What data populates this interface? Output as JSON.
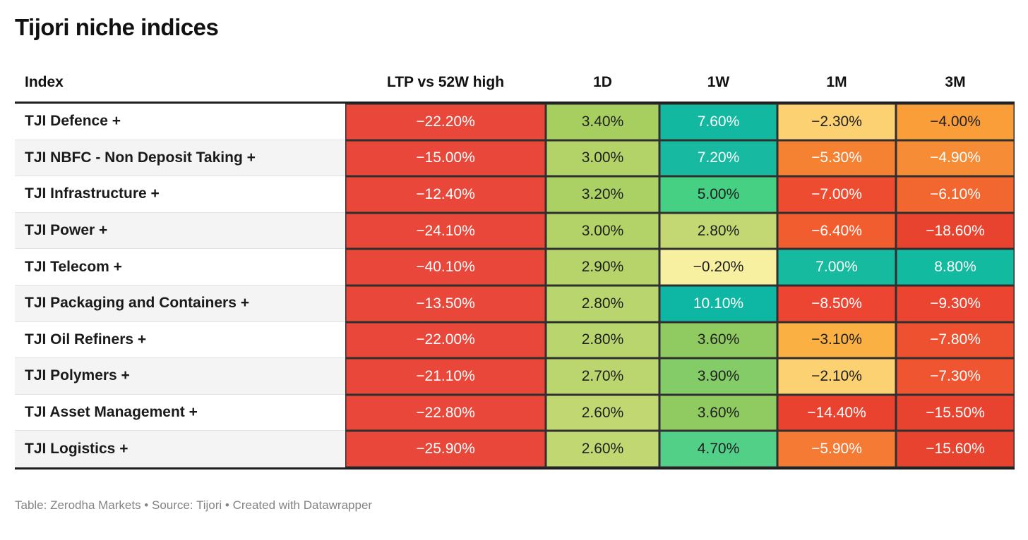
{
  "title": "Tijori niche indices",
  "footer": "Table: Zerodha Markets • Source: Tijori • Created with Datawrapper",
  "table": {
    "columns": [
      "Index",
      "LTP vs 52W high",
      "1D",
      "1W",
      "1M",
      "3M"
    ],
    "rows": [
      {
        "index": "TJI Defence +",
        "cells": [
          {
            "v": "−22.20%",
            "bg": "#e8473a",
            "fg": "#ffffff"
          },
          {
            "v": "3.40%",
            "bg": "#a7cf60",
            "fg": "#1f1f1f"
          },
          {
            "v": "7.60%",
            "bg": "#13b8a1",
            "fg": "#ffffff"
          },
          {
            "v": "−2.30%",
            "bg": "#fbd172",
            "fg": "#1f1f1f"
          },
          {
            "v": "−4.00%",
            "bg": "#f99e38",
            "fg": "#1f1f1f"
          }
        ]
      },
      {
        "index": "TJI NBFC - Non Deposit Taking +",
        "cells": [
          {
            "v": "−15.00%",
            "bg": "#e8473a",
            "fg": "#ffffff"
          },
          {
            "v": "3.00%",
            "bg": "#b3d368",
            "fg": "#1f1f1f"
          },
          {
            "v": "7.20%",
            "bg": "#18b9a1",
            "fg": "#ffffff"
          },
          {
            "v": "−5.30%",
            "bg": "#f58133",
            "fg": "#ffffff"
          },
          {
            "v": "−4.90%",
            "bg": "#f68c35",
            "fg": "#ffffff"
          }
        ]
      },
      {
        "index": "TJI Infrastructure +",
        "cells": [
          {
            "v": "−12.40%",
            "bg": "#e8473a",
            "fg": "#ffffff"
          },
          {
            "v": "3.20%",
            "bg": "#abd164",
            "fg": "#1f1f1f"
          },
          {
            "v": "5.00%",
            "bg": "#46d083",
            "fg": "#1f1f1f"
          },
          {
            "v": "−7.00%",
            "bg": "#ee4c31",
            "fg": "#ffffff"
          },
          {
            "v": "−6.10%",
            "bg": "#f2672f",
            "fg": "#ffffff"
          }
        ]
      },
      {
        "index": "TJI Power +",
        "cells": [
          {
            "v": "−24.10%",
            "bg": "#e8473a",
            "fg": "#ffffff"
          },
          {
            "v": "3.00%",
            "bg": "#b3d368",
            "fg": "#1f1f1f"
          },
          {
            "v": "2.80%",
            "bg": "#c3d873",
            "fg": "#1f1f1f"
          },
          {
            "v": "−6.40%",
            "bg": "#f15d2f",
            "fg": "#ffffff"
          },
          {
            "v": "−18.60%",
            "bg": "#e8432f",
            "fg": "#ffffff"
          }
        ]
      },
      {
        "index": "TJI Telecom +",
        "cells": [
          {
            "v": "−40.10%",
            "bg": "#e8473a",
            "fg": "#ffffff"
          },
          {
            "v": "2.90%",
            "bg": "#b6d46a",
            "fg": "#1f1f1f"
          },
          {
            "v": "−0.20%",
            "bg": "#f6f0a0",
            "fg": "#1f1f1f"
          },
          {
            "v": "7.00%",
            "bg": "#16bb9f",
            "fg": "#ffffff"
          },
          {
            "v": "8.80%",
            "bg": "#12bba0",
            "fg": "#ffffff"
          }
        ]
      },
      {
        "index": "TJI Packaging and Containers +",
        "cells": [
          {
            "v": "−13.50%",
            "bg": "#e8473a",
            "fg": "#ffffff"
          },
          {
            "v": "2.80%",
            "bg": "#b9d56d",
            "fg": "#1f1f1f"
          },
          {
            "v": "10.10%",
            "bg": "#0db7a4",
            "fg": "#ffffff"
          },
          {
            "v": "−8.50%",
            "bg": "#ec4532",
            "fg": "#ffffff"
          },
          {
            "v": "−9.30%",
            "bg": "#eb4431",
            "fg": "#ffffff"
          }
        ]
      },
      {
        "index": "TJI Oil Refiners +",
        "cells": [
          {
            "v": "−22.00%",
            "bg": "#e8473a",
            "fg": "#ffffff"
          },
          {
            "v": "2.80%",
            "bg": "#b9d56d",
            "fg": "#1f1f1f"
          },
          {
            "v": "3.60%",
            "bg": "#8fcb61",
            "fg": "#1f1f1f"
          },
          {
            "v": "−3.10%",
            "bg": "#fab042",
            "fg": "#1f1f1f"
          },
          {
            "v": "−7.80%",
            "bg": "#ee512f",
            "fg": "#ffffff"
          }
        ]
      },
      {
        "index": "TJI Polymers +",
        "cells": [
          {
            "v": "−21.10%",
            "bg": "#e8473a",
            "fg": "#ffffff"
          },
          {
            "v": "2.70%",
            "bg": "#bcd66f",
            "fg": "#1f1f1f"
          },
          {
            "v": "3.90%",
            "bg": "#84cc68",
            "fg": "#1f1f1f"
          },
          {
            "v": "−2.10%",
            "bg": "#fbd172",
            "fg": "#1f1f1f"
          },
          {
            "v": "−7.30%",
            "bg": "#ef5530",
            "fg": "#ffffff"
          }
        ]
      },
      {
        "index": "TJI Asset Management +",
        "cells": [
          {
            "v": "−22.80%",
            "bg": "#e8473a",
            "fg": "#ffffff"
          },
          {
            "v": "2.60%",
            "bg": "#c0d772",
            "fg": "#1f1f1f"
          },
          {
            "v": "3.60%",
            "bg": "#8fcb61",
            "fg": "#1f1f1f"
          },
          {
            "v": "−14.40%",
            "bg": "#e9432f",
            "fg": "#ffffff"
          },
          {
            "v": "−15.50%",
            "bg": "#e8432f",
            "fg": "#ffffff"
          }
        ]
      },
      {
        "index": "TJI Logistics +",
        "cells": [
          {
            "v": "−25.90%",
            "bg": "#e8473a",
            "fg": "#ffffff"
          },
          {
            "v": "2.60%",
            "bg": "#c0d772",
            "fg": "#1f1f1f"
          },
          {
            "v": "4.70%",
            "bg": "#53d088",
            "fg": "#1f1f1f"
          },
          {
            "v": "−5.90%",
            "bg": "#f57a33",
            "fg": "#ffffff"
          },
          {
            "v": "−15.60%",
            "bg": "#e8432f",
            "fg": "#ffffff"
          }
        ]
      }
    ]
  },
  "chart_data": {
    "type": "table",
    "title": "Tijori niche indices",
    "columns": [
      "Index",
      "LTP vs 52W high",
      "1D",
      "1W",
      "1M",
      "3M"
    ],
    "rows": [
      [
        "TJI Defence +",
        -22.2,
        3.4,
        7.6,
        -2.3,
        -4.0
      ],
      [
        "TJI NBFC - Non Deposit Taking +",
        -15.0,
        3.0,
        7.2,
        -5.3,
        -4.9
      ],
      [
        "TJI Infrastructure +",
        -12.4,
        3.2,
        5.0,
        -7.0,
        -6.1
      ],
      [
        "TJI Power +",
        -24.1,
        3.0,
        2.8,
        -6.4,
        -18.6
      ],
      [
        "TJI Telecom +",
        -40.1,
        2.9,
        -0.2,
        7.0,
        8.8
      ],
      [
        "TJI Packaging and Containers +",
        -13.5,
        2.8,
        10.1,
        -8.5,
        -9.3
      ],
      [
        "TJI Oil Refiners +",
        -22.0,
        2.8,
        3.6,
        -3.1,
        -7.8
      ],
      [
        "TJI Polymers +",
        -21.1,
        2.7,
        3.9,
        -2.1,
        -7.3
      ],
      [
        "TJI Asset Management +",
        -22.8,
        2.6,
        3.6,
        -14.4,
        -15.5
      ],
      [
        "TJI Logistics +",
        -25.9,
        2.6,
        4.7,
        -5.9,
        -15.6
      ]
    ],
    "units": "percent",
    "notes": "Heatmap-colored table; red = negative, green/teal = positive",
    "footer": "Table: Zerodha Markets • Source: Tijori • Created with Datawrapper"
  }
}
